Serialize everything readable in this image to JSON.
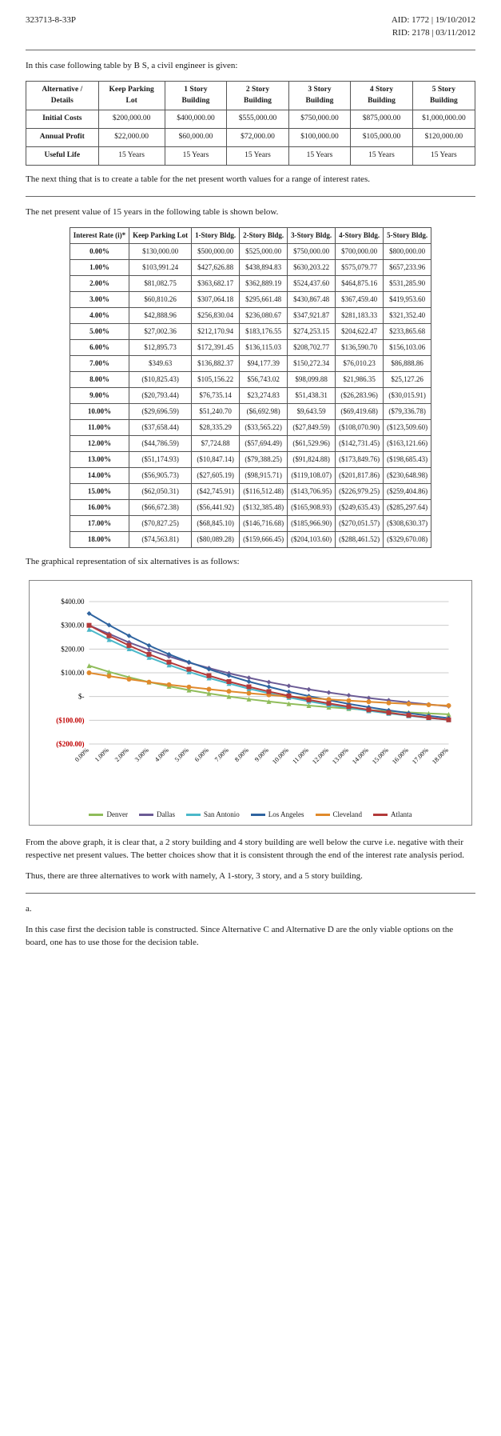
{
  "header": {
    "left": "323713-8-33P",
    "right1": "AID: 1772 | 19/10/2012",
    "right2": "RID: 2178 | 03/11/2012"
  },
  "para": {
    "intro": "In this case following table by B S, a civil engineer is given:",
    "afterAlt": "The next thing that is to create a table for the net present worth values for a range of interest rates.",
    "beforeNpv": "The net present value of 15 years in the following table is shown below.",
    "afterNpv": "The graphical representation of six alternatives is as follows:",
    "afterChart1": "From the above graph, it is clear that, a 2 story building and 4 story building are well below the curve i.e. negative with their respective net present values. The better choices show that it is consistent through the end of the interest rate analysis period.",
    "afterChart2": "Thus, there are three alternatives to work with namely, A 1-story, 3 story, and a 5 story building.",
    "letterA": "a.",
    "final": "In this case first the decision table is constructed. Since Alternative C and Alternative D are the only viable options on the board, one has to use those for the decision table."
  },
  "altTable": {
    "headers": [
      "Alternative / Details",
      "Keep Parking Lot",
      "1 Story Building",
      "2 Story Building",
      "3 Story Building",
      "4 Story Building",
      "5 Story Building"
    ],
    "rows": [
      [
        "Initial Costs",
        "$200,000.00",
        "$400,000.00",
        "$555,000.00",
        "$750,000.00",
        "$875,000.00",
        "$1,000,000.00"
      ],
      [
        "Annual Profit",
        "$22,000.00",
        "$60,000.00",
        "$72,000.00",
        "$100,000.00",
        "$105,000.00",
        "$120,000.00"
      ],
      [
        "Useful Life",
        "15 Years",
        "15 Years",
        "15 Years",
        "15 Years",
        "15 Years",
        "15 Years"
      ]
    ]
  },
  "npvTable": {
    "headers": [
      "Interest Rate (i)*",
      "Keep Parking Lot",
      "1-Story Bldg.",
      "2-Story Bldg.",
      "3-Story Bldg.",
      "4-Story Bldg.",
      "5-Story Bldg."
    ],
    "rows": [
      [
        "0.00%",
        "$130,000.00",
        "$500,000.00",
        "$525,000.00",
        "$750,000.00",
        "$700,000.00",
        "$800,000.00"
      ],
      [
        "1.00%",
        "$103,991.24",
        "$427,626.88",
        "$438,894.83",
        "$630,203.22",
        "$575,079.77",
        "$657,233.96"
      ],
      [
        "2.00%",
        "$81,082.75",
        "$363,682.17",
        "$362,889.19",
        "$524,437.60",
        "$464,875.16",
        "$531,285.90"
      ],
      [
        "3.00%",
        "$60,810.26",
        "$307,064.18",
        "$295,661.48",
        "$430,867.48",
        "$367,459.40",
        "$419,953.60"
      ],
      [
        "4.00%",
        "$42,888.96",
        "$256,830.04",
        "$236,080.67",
        "$347,921.87",
        "$281,183.33",
        "$321,352.40"
      ],
      [
        "5.00%",
        "$27,002.36",
        "$212,170.94",
        "$183,176.55",
        "$274,253.15",
        "$204,622.47",
        "$233,865.68"
      ],
      [
        "6.00%",
        "$12,895.73",
        "$172,391.45",
        "$136,115.03",
        "$208,702.77",
        "$136,590.70",
        "$156,103.06"
      ],
      [
        "7.00%",
        "$349.63",
        "$136,882.37",
        "$94,177.39",
        "$150,272.34",
        "$76,010.23",
        "$86,888.86"
      ],
      [
        "8.00%",
        "($10,825.43)",
        "$105,156.22",
        "$56,743.02",
        "$98,099.88",
        "$21,986.35",
        "$25,127.26"
      ],
      [
        "9.00%",
        "($20,793.44)",
        "$76,735.14",
        "$23,274.83",
        "$51,438.31",
        "($26,283.96)",
        "($30,015.91)"
      ],
      [
        "10.00%",
        "($29,696.59)",
        "$51,240.70",
        "($6,692.98)",
        "$9,643.59",
        "($69,419.68)",
        "($79,336.78)"
      ],
      [
        "11.00%",
        "($37,658.44)",
        "$28,335.29",
        "($33,565.22)",
        "($27,849.59)",
        "($108,070.90)",
        "($123,509.60)"
      ],
      [
        "12.00%",
        "($44,786.59)",
        "$7,724.88",
        "($57,694.49)",
        "($61,529.96)",
        "($142,731.45)",
        "($163,121.66)"
      ],
      [
        "13.00%",
        "($51,174.93)",
        "($10,847.14)",
        "($79,388.25)",
        "($91,824.88)",
        "($173,849.76)",
        "($198,685.43)"
      ],
      [
        "14.00%",
        "($56,905.73)",
        "($27,605.19)",
        "($98,915.71)",
        "($119,108.07)",
        "($201,817.86)",
        "($230,648.98)"
      ],
      [
        "15.00%",
        "($62,050.31)",
        "($42,745.91)",
        "($116,512.48)",
        "($143,706.95)",
        "($226,979.25)",
        "($259,404.86)"
      ],
      [
        "16.00%",
        "($66,672.38)",
        "($56,441.92)",
        "($132,385.48)",
        "($165,908.93)",
        "($249,635.43)",
        "($285,297.64)"
      ],
      [
        "17.00%",
        "($70,827.25)",
        "($68,845.10)",
        "($146,716.68)",
        "($185,966.90)",
        "($270,051.57)",
        "($308,630.37)"
      ],
      [
        "18.00%",
        "($74,563.81)",
        "($80,089.28)",
        "($159,666.45)",
        "($204,103.60)",
        "($288,461.52)",
        "($329,670.08)"
      ]
    ]
  },
  "chart": {
    "background_color": "#ffffff",
    "grid_color": "#cccccc",
    "xLabels": [
      "0.00%",
      "1.00%",
      "2.00%",
      "3.00%",
      "4.00%",
      "5.00%",
      "6.00%",
      "7.00%",
      "8.00%",
      "9.00%",
      "10.00%",
      "11.00%",
      "12.00%",
      "13.00%",
      "14.00%",
      "15.00%",
      "16.00%",
      "17.00%",
      "18.00%"
    ],
    "yTicks": [
      -200,
      -100,
      0,
      100,
      200,
      300,
      400
    ],
    "yTickLabels": [
      "($200.00)",
      "($100.00)",
      "$-",
      "$100.00",
      "$200.00",
      "$300.00",
      "$400.00"
    ],
    "ylim": [
      -200,
      400
    ],
    "series": [
      {
        "name": "Denver",
        "color": "#8fbc5a",
        "marker": "triangle",
        "data": [
          130,
          104,
          81,
          61,
          43,
          27,
          13,
          0,
          -11,
          -21,
          -30,
          -38,
          -45,
          -51,
          -57,
          -62,
          -67,
          -71,
          -75
        ]
      },
      {
        "name": "Dallas",
        "color": "#6b5b95",
        "marker": "diamond",
        "data": [
          300,
          264,
          228,
          197,
          169,
          143,
          120,
          98,
          79,
          61,
          45,
          30,
          17,
          5,
          -6,
          -16,
          -25,
          -33,
          -41
        ]
      },
      {
        "name": "San Antonio",
        "color": "#4bb8c9",
        "marker": "triangle",
        "data": [
          283,
          240,
          201,
          165,
          133,
          104,
          78,
          55,
          33,
          14,
          -4,
          -20,
          -35,
          -48,
          -60,
          -71,
          -81,
          -90,
          -98
        ]
      },
      {
        "name": "Los Angeles",
        "color": "#2f64a0",
        "marker": "diamond",
        "data": [
          350,
          301,
          256,
          215,
          178,
          145,
          115,
          88,
          63,
          41,
          20,
          2,
          -15,
          -31,
          -45,
          -58,
          -70,
          -81,
          -91
        ]
      },
      {
        "name": "Cleveland",
        "color": "#e08a2c",
        "marker": "circle",
        "data": [
          100,
          86,
          73,
          61,
          50,
          40,
          31,
          22,
          14,
          7,
          0,
          -6,
          -12,
          -17,
          -22,
          -27,
          -31,
          -35,
          -38
        ]
      },
      {
        "name": "Atlanta",
        "color": "#b33a3a",
        "marker": "square",
        "data": [
          300,
          256,
          215,
          178,
          145,
          115,
          88,
          63,
          41,
          21,
          3,
          -14,
          -29,
          -43,
          -56,
          -68,
          -79,
          -89,
          -98
        ]
      }
    ]
  }
}
